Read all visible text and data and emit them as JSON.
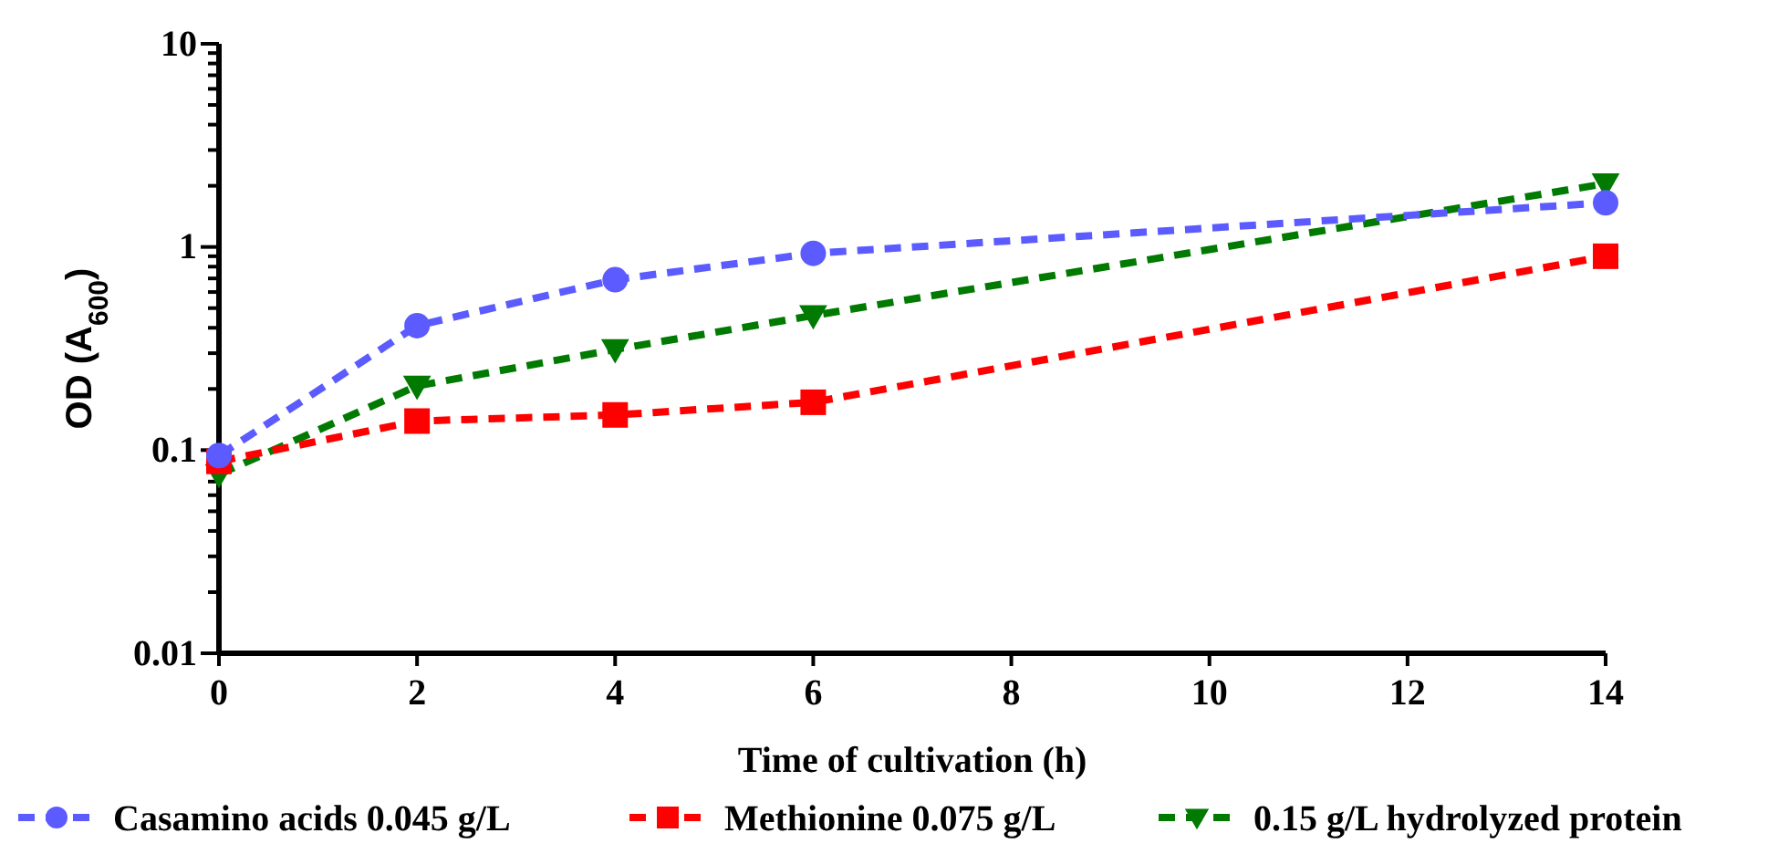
{
  "chart_data": {
    "type": "line",
    "xlabel": "Time of cultivation (h)",
    "ylabel": "OD (A$_{600}$)",
    "log": "y",
    "xlim": [
      0,
      14
    ],
    "xticks": [
      0,
      2,
      4,
      6,
      8,
      10,
      12,
      14
    ],
    "ylim": [
      0.01,
      10
    ],
    "yticks": [
      0.01,
      {
        "value": 0.02,
        "label": null
      },
      {
        "value": 0.03,
        "label": null
      },
      {
        "value": 0.04,
        "label": null
      },
      {
        "value": 0.05,
        "label": null
      },
      {
        "value": 0.06,
        "label": null
      },
      {
        "value": 0.07,
        "label": null
      },
      {
        "value": 0.08,
        "label": null
      },
      {
        "value": 0.09,
        "label": null
      },
      0.1,
      {
        "value": 0.2,
        "label": null
      },
      {
        "value": 0.3,
        "label": null
      },
      {
        "value": 0.4,
        "label": null
      },
      {
        "value": 0.5,
        "label": null
      },
      {
        "value": 0.6,
        "label": null
      },
      {
        "value": 0.7,
        "label": null
      },
      {
        "value": 0.8,
        "label": null
      },
      {
        "value": 0.9,
        "label": null
      },
      1,
      {
        "value": 2,
        "label": null
      },
      {
        "value": 3,
        "label": null
      },
      {
        "value": 4,
        "label": null
      },
      {
        "value": 5,
        "label": null
      },
      {
        "value": 6,
        "label": null
      },
      {
        "value": 7,
        "label": null
      },
      {
        "value": 8,
        "label": null
      },
      {
        "value": 9,
        "label": null
      },
      10
    ],
    "x": [
      0,
      2,
      4,
      6,
      14
    ],
    "grid": false,
    "legend": "bottom",
    "line_style": "dashed",
    "series": [
      {
        "name": "Casamino acids 0.045 g/L",
        "color": "#5b5bff",
        "marker": "circle",
        "values": [
          0.094,
          0.41,
          0.69,
          0.93,
          1.65
        ]
      },
      {
        "name": "Methionine 0.075 g/L",
        "color": "#ff0000",
        "marker": "square",
        "values": [
          0.088,
          0.139,
          0.149,
          0.172,
          0.9
        ]
      },
      {
        "name": "0.15 g/L hydrolyzed protein",
        "color": "#007a00",
        "marker": "triangle",
        "values": [
          0.076,
          0.207,
          0.313,
          0.46,
          2.05
        ]
      }
    ]
  }
}
